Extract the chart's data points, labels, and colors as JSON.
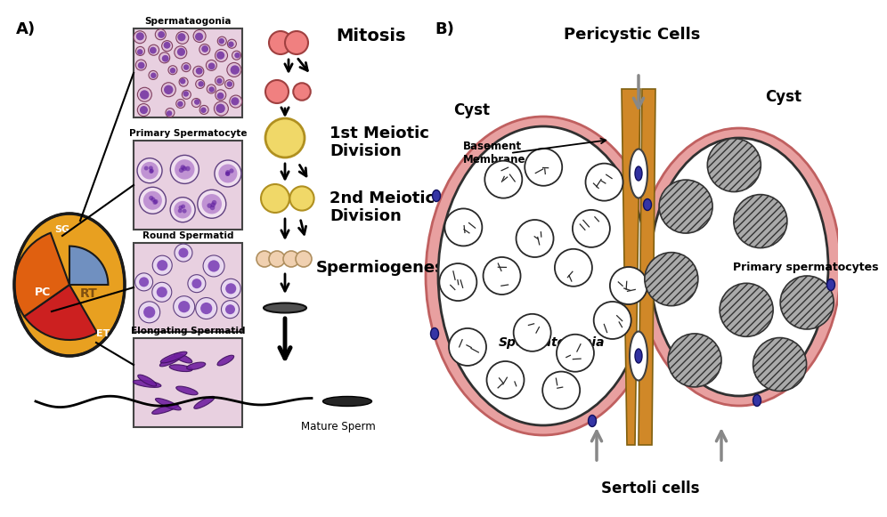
{
  "bg_color": "#ffffff",
  "panel_a_label": "A)",
  "panel_b_label": "B)",
  "stage_labels": [
    "Spermataogonia",
    "Primary Spermatocyte",
    "Round Spermatid",
    "Elongating Spermatid"
  ],
  "process_labels": [
    "Mitosis",
    "1st Meiotic\nDivision",
    "2nd Meiotic\nDivision",
    "Spermiogenesis"
  ],
  "mature_sperm_label": "Mature Sperm",
  "b_labels": {
    "pericystic_cells": "Pericystic Cells",
    "basement_membrane": "Basement\nMembrane",
    "cyst_left": "Cyst",
    "cyst_right": "Cyst",
    "spermatogonia": "Spermatogonia",
    "primary_spermatocytes": "Primary spermatocytes",
    "sertoli_cells": "Sertoli cells"
  },
  "testis_sg_color": "#cc2020",
  "testis_pc_color": "#e06010",
  "testis_rt_color": "#e8a020",
  "testis_et_color": "#7090c0",
  "pink_cyst_color": "#e8a0a0",
  "orange_bar_color": "#d08828",
  "sg_cell_color": "#f08080",
  "ps_cell_color": "#f0d868",
  "spermatid_small_color": "#f0d888",
  "spermatid_tiny_color": "#f0c0c0"
}
